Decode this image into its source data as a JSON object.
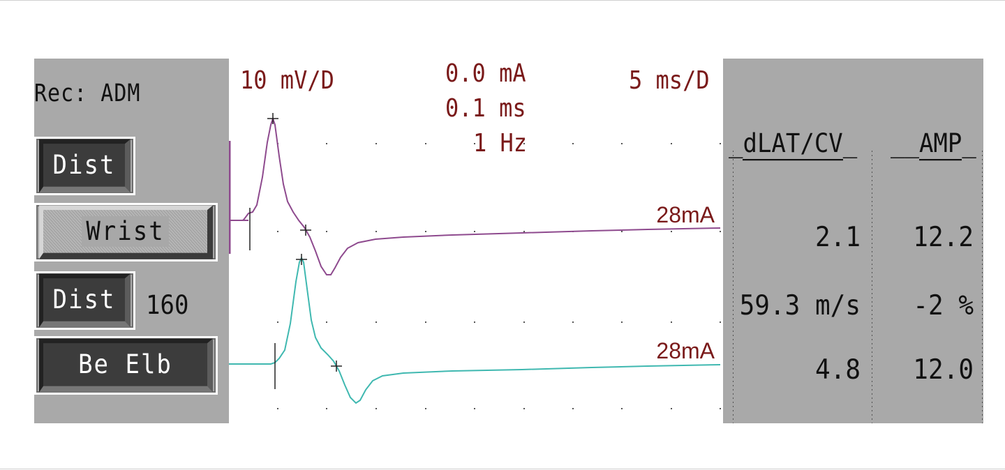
{
  "left_panel": {
    "rec_label": "Rec: ADM",
    "buttons": {
      "dist_1": "Dist",
      "site_1": "Wrist",
      "dist_2": "Dist",
      "site_2": "Be Elb"
    },
    "distance_value": "160"
  },
  "trace_header": {
    "sensitivity": "10 mV/D",
    "current": "0.0 mA",
    "duration": "0.1 ms",
    "rate": "1 Hz",
    "sweep": "5 ms/D"
  },
  "traces": [
    {
      "name": "Wrist",
      "stim_label": "28mA",
      "color": "#8e4a8e"
    },
    {
      "name": "Be Elb",
      "stim_label": "28mA",
      "color": "#3fb8b0"
    }
  ],
  "results_panel": {
    "columns": [
      "dLAT/CV",
      "AMP"
    ],
    "rows": [
      {
        "dlat_cv": "2.1",
        "amp": "12.2"
      },
      {
        "dlat_cv": "59.3 m/s",
        "amp": "-2 %"
      },
      {
        "dlat_cv": "4.8",
        "amp": "12.0"
      }
    ]
  },
  "colors": {
    "panel_gray": "#a9a9a9",
    "label_maroon": "#7a1a1a",
    "trace_purple": "#8e4a8e",
    "trace_teal": "#3fb8b0"
  }
}
